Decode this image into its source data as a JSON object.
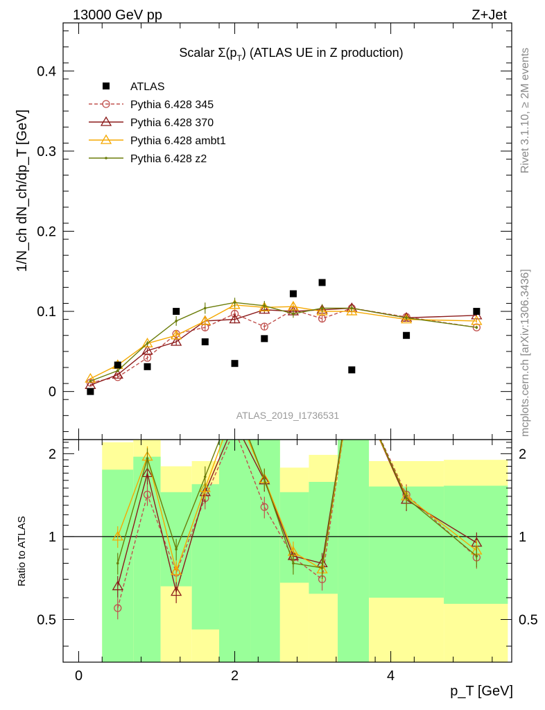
{
  "header": {
    "energy_label": "13000 GeV pp",
    "process_label": "Z+Jet",
    "side_label_top": "Rivet 3.1.10, ≥ 2M events",
    "side_label_bottom": "mcplots.cern.ch [arXiv:1306.3436]",
    "analysis_id": "ATLAS_2019_I1736531"
  },
  "chart_data": {
    "type": "line",
    "title": "Scalar Σ(p_T) (ATLAS UE in Z production)",
    "title_main": "Scalar Σ(p",
    "title_sub": "T",
    "title_close": ") (ATLAS UE in Z production)",
    "xlabel": "p_T [GeV]",
    "ylabel": "1/N_ch dN_ch/dp_T [GeV]",
    "ratio_ylabel": "Ratio to ATLAS",
    "xlim": [
      -0.2,
      5.55
    ],
    "ylim": [
      -0.06,
      0.46
    ],
    "ratio_ylim": [
      0.35,
      2.25
    ],
    "x_ticks": [
      0,
      2,
      4
    ],
    "y_ticks": [
      0,
      0.1,
      0.2,
      0.3,
      0.4
    ],
    "y_tick_labels": [
      "0",
      "0.1",
      "0.2",
      "0.3",
      "0.4"
    ],
    "ratio_ticks": [
      0.5,
      1,
      2
    ],
    "ratio_tick_labels": [
      "0.5",
      "1",
      "2"
    ],
    "legend_position": "top-left",
    "data": {
      "name": "ATLAS",
      "x": [
        0.15,
        0.5,
        0.88,
        1.25,
        1.62,
        2.0,
        2.38,
        2.75,
        3.12,
        3.5,
        4.2,
        5.1
      ],
      "y": [
        0.0,
        0.033,
        0.031,
        0.1,
        0.062,
        0.035,
        0.066,
        0.122,
        0.136,
        0.027,
        0.07,
        0.1
      ]
    },
    "bands": [
      {
        "x0": 0.3,
        "x1": 0.7,
        "inner": [
          0.35,
          1.75
        ],
        "outer": [
          0.35,
          2.2
        ]
      },
      {
        "x0": 0.7,
        "x1": 1.05,
        "inner": [
          0.35,
          1.95
        ],
        "outer": [
          0.35,
          2.3
        ]
      },
      {
        "x0": 1.05,
        "x1": 1.45,
        "inner": [
          0.66,
          1.45
        ],
        "outer": [
          0.35,
          1.8
        ]
      },
      {
        "x0": 1.45,
        "x1": 1.8,
        "inner": [
          0.46,
          1.55
        ],
        "outer": [
          0.35,
          1.88
        ]
      },
      {
        "x0": 1.8,
        "x1": 2.2,
        "inner": [
          0.35,
          2.3
        ],
        "outer": [
          0.35,
          2.3
        ]
      },
      {
        "x0": 2.2,
        "x1": 2.58,
        "inner": [
          0.35,
          2.3
        ],
        "outer": [
          0.35,
          2.3
        ]
      },
      {
        "x0": 2.58,
        "x1": 2.95,
        "inner": [
          0.68,
          1.45
        ],
        "outer": [
          0.35,
          1.78
        ]
      },
      {
        "x0": 2.95,
        "x1": 3.32,
        "inner": [
          0.62,
          1.58
        ],
        "outer": [
          0.35,
          1.98
        ]
      },
      {
        "x0": 3.32,
        "x1": 3.72,
        "inner": [
          0.35,
          2.3
        ],
        "outer": [
          0.35,
          2.3
        ]
      },
      {
        "x0": 3.72,
        "x1": 4.68,
        "inner": [
          0.6,
          1.52
        ],
        "outer": [
          0.35,
          1.88
        ]
      },
      {
        "x0": 4.68,
        "x1": 5.5,
        "inner": [
          0.57,
          1.53
        ],
        "outer": [
          0.35,
          1.9
        ]
      }
    ],
    "series": [
      {
        "name": "Pythia 6.428 345",
        "color": "#c0504d",
        "marker": "circle",
        "dashed": true,
        "y": [
          0.011,
          0.018,
          0.042,
          0.072,
          0.08,
          0.097,
          0.081,
          0.102,
          0.091,
          0.104,
          0.093,
          0.08
        ],
        "err": [
          0.001,
          0.002,
          0.003,
          0.004,
          0.005,
          0.005,
          0.004,
          0.005,
          0.005,
          0.004,
          0.003,
          0.002
        ],
        "ratio": [
          null,
          0.55,
          1.42,
          0.74,
          1.38,
          2.45,
          1.28,
          0.84,
          0.7,
          3.8,
          1.42,
          0.84
        ]
      },
      {
        "name": "Pythia 6.428 370",
        "color": "#8b1a1a",
        "marker": "triangle",
        "dashed": false,
        "y": [
          0.008,
          0.021,
          0.051,
          0.062,
          0.088,
          0.09,
          0.102,
          0.1,
          0.102,
          0.104,
          0.092,
          0.095
        ],
        "err": [
          0.001,
          0.002,
          0.003,
          0.004,
          0.005,
          0.005,
          0.005,
          0.005,
          0.005,
          0.004,
          0.003,
          0.002
        ],
        "ratio": [
          null,
          0.66,
          1.7,
          0.63,
          1.45,
          2.6,
          1.6,
          0.85,
          0.8,
          3.8,
          1.36,
          0.95
        ]
      },
      {
        "name": "Pythia 6.428 ambt1",
        "color": "#f5a800",
        "marker": "triangle",
        "dashed": false,
        "y": [
          0.016,
          0.033,
          0.06,
          0.07,
          0.088,
          0.108,
          0.105,
          0.106,
          0.1,
          0.1,
          0.09,
          0.088
        ],
        "err": [
          0.001,
          0.002,
          0.003,
          0.004,
          0.005,
          0.006,
          0.005,
          0.005,
          0.005,
          0.004,
          0.003,
          0.002
        ],
        "ratio": [
          null,
          1.0,
          1.95,
          0.75,
          1.5,
          2.95,
          1.62,
          0.88,
          0.76,
          3.7,
          1.4,
          0.89
        ]
      },
      {
        "name": "Pythia 6.428 z2",
        "color": "#6b7d0a",
        "marker": "dot",
        "dashed": false,
        "y": [
          0.013,
          0.026,
          0.06,
          0.088,
          0.104,
          0.111,
          0.107,
          0.097,
          0.104,
          0.104,
          0.092,
          0.08
        ],
        "err": [
          0.001,
          0.002,
          0.003,
          0.006,
          0.007,
          0.006,
          0.006,
          0.005,
          0.005,
          0.004,
          0.003,
          0.002
        ],
        "ratio": [
          null,
          0.8,
          1.92,
          0.9,
          1.65,
          3.1,
          1.62,
          0.8,
          0.77,
          3.85,
          1.38,
          0.85
        ]
      }
    ]
  }
}
